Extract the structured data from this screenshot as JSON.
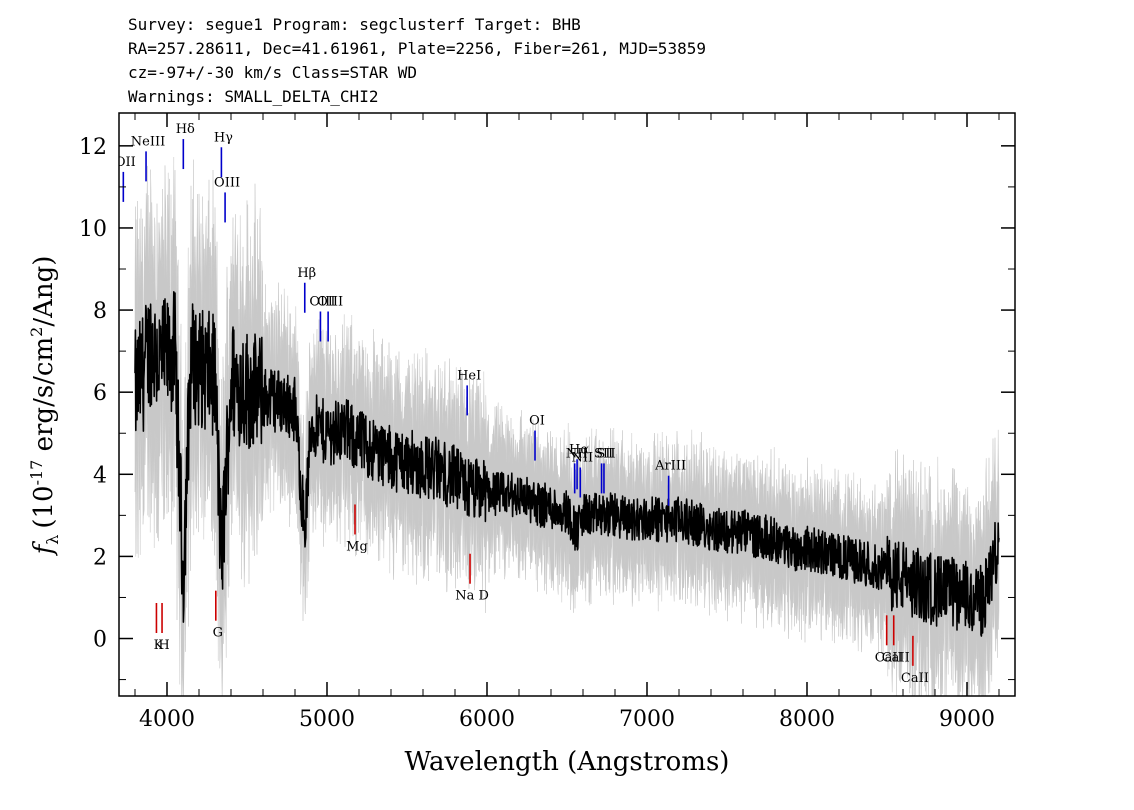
{
  "header": {
    "line1": "Survey: segue1 Program: segclusterf Target: BHB",
    "line2": "RA=257.28611, Dec=41.61961, Plate=2256, Fiber=261, MJD=53859",
    "line3": "cz=-97+/-30 km/s Class=STAR WD",
    "line4": "Warnings: SMALL_DELTA_CHI2"
  },
  "chart_data": {
    "type": "line",
    "xlabel": "Wavelength (Angstroms)",
    "ylabel": "f_λ (10^-17 erg/s/cm^2/Ang)",
    "ylabel_parts": {
      "f": "f",
      "lambda": "λ",
      "unit_a": "(10",
      "exp_a": "-17",
      "unit_b": " erg/s/cm",
      "exp_b": "2",
      "unit_c": "/Ang)"
    },
    "xlim": [
      3700,
      9300
    ],
    "ylim": [
      -1.4,
      12.8
    ],
    "xticks": [
      4000,
      5000,
      6000,
      7000,
      8000,
      9000
    ],
    "yticks": [
      0,
      2,
      4,
      6,
      8,
      10,
      12
    ],
    "grid": false,
    "colors": {
      "flux": "#000000",
      "error_band": "#c8c8c8",
      "emission": "#0000cc",
      "absorption": "#cc0000"
    },
    "series": [
      {
        "x": [
          3800,
          3850,
          3900,
          3950,
          4000,
          4050,
          4101,
          4150,
          4200,
          4250,
          4300,
          4340,
          4400,
          4500,
          4600,
          4700,
          4800,
          4861,
          4900,
          5000,
          5100,
          5200,
          5300,
          5400,
          5500,
          5600,
          5700,
          5800,
          5900,
          6000,
          6100,
          6200,
          6300,
          6400,
          6500,
          6563,
          6600,
          6700,
          6800,
          6900,
          7000,
          7100,
          7200,
          7300,
          7400,
          7500,
          7600,
          7700,
          7800,
          7900,
          8000,
          8100,
          8200,
          8300,
          8400,
          8500,
          8600,
          8700,
          8800,
          8900,
          9000,
          9100,
          9200
        ],
        "y": [
          6.0,
          6.5,
          7.2,
          6.8,
          6.8,
          7.0,
          1.5,
          6.8,
          6.6,
          6.5,
          6.4,
          1.8,
          6.3,
          6.1,
          5.9,
          5.8,
          5.6,
          2.6,
          5.2,
          5.0,
          5.1,
          4.8,
          4.6,
          4.4,
          4.3,
          4.2,
          4.1,
          3.9,
          3.6,
          3.6,
          3.5,
          3.5,
          3.3,
          3.2,
          3.1,
          2.6,
          3.0,
          3.0,
          3.0,
          2.9,
          2.9,
          2.9,
          2.9,
          2.8,
          2.7,
          2.6,
          2.6,
          2.5,
          2.4,
          2.2,
          2.2,
          2.1,
          2.0,
          1.9,
          1.8,
          1.6,
          1.5,
          1.3,
          1.2,
          1.1,
          1.0,
          0.9,
          2.3
        ]
      }
    ],
    "emission_lines": [
      {
        "label": "OII",
        "wavelength": 3727,
        "y": 11.0
      },
      {
        "label": "NeIII",
        "wavelength": 3869,
        "y": 11.5
      },
      {
        "label": "Hδ",
        "wavelength": 4102,
        "y": 11.8
      },
      {
        "label": "Hγ",
        "wavelength": 4340,
        "y": 11.6
      },
      {
        "label": "OIII",
        "wavelength": 4363,
        "y": 10.5
      },
      {
        "label": "Hβ",
        "wavelength": 4861,
        "y": 8.3
      },
      {
        "label": "OIII",
        "wavelength": 4959,
        "y": 7.6
      },
      {
        "label": "OIII",
        "wavelength": 5007,
        "y": 7.6
      },
      {
        "label": "HeI",
        "wavelength": 5876,
        "y": 5.8
      },
      {
        "label": "OI",
        "wavelength": 6300,
        "y": 4.7
      },
      {
        "label": "NII",
        "wavelength": 6548,
        "y": 3.9
      },
      {
        "label": "Hα",
        "wavelength": 6563,
        "y": 4.0
      },
      {
        "label": "NII",
        "wavelength": 6583,
        "y": 3.8
      },
      {
        "label": "SII",
        "wavelength": 6716,
        "y": 3.9
      },
      {
        "label": "SII",
        "wavelength": 6731,
        "y": 3.9
      },
      {
        "label": "ArIII",
        "wavelength": 7135,
        "y": 3.6
      }
    ],
    "absorption_lines": [
      {
        "label": "K",
        "wavelength": 3934,
        "y": 0.5
      },
      {
        "label": "H",
        "wavelength": 3969,
        "y": 0.5
      },
      {
        "label": "G",
        "wavelength": 4305,
        "y": 0.8
      },
      {
        "label": "Mg",
        "wavelength": 5175,
        "y": 2.9
      },
      {
        "label": "Na D",
        "wavelength": 5894,
        "y": 1.7
      },
      {
        "label": "CaII",
        "wavelength": 8498,
        "y": 0.2
      },
      {
        "label": "CaII",
        "wavelength": 8542,
        "y": 0.2
      },
      {
        "label": "CaII",
        "wavelength": 8662,
        "y": -0.3
      }
    ]
  }
}
